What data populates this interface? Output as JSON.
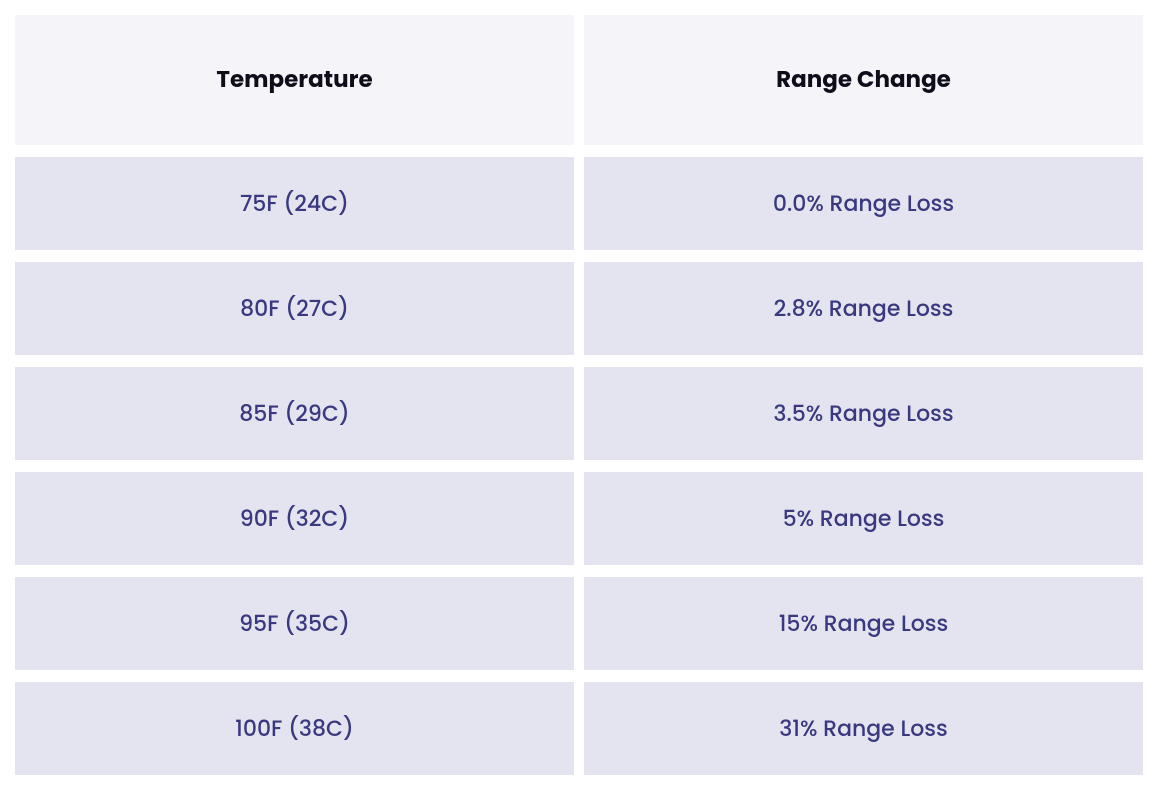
{
  "table": {
    "type": "table",
    "columns": [
      {
        "label": "Temperature",
        "alignment": "center"
      },
      {
        "label": "Range Change",
        "alignment": "center"
      }
    ],
    "rows": [
      {
        "temperature": "75F (24C)",
        "range_change": "0.0% Range Loss"
      },
      {
        "temperature": "80F (27C)",
        "range_change": "2.8% Range Loss"
      },
      {
        "temperature": "85F (29C)",
        "range_change": "3.5% Range Loss"
      },
      {
        "temperature": "90F (32C)",
        "range_change": "5% Range Loss"
      },
      {
        "temperature": "95F (35C)",
        "range_change": "15% Range Loss"
      },
      {
        "temperature": "100F (38C)",
        "range_change": "31% Range Loss"
      }
    ],
    "header_background_color": "#f5f4f9",
    "header_text_color": "#0e0d1a",
    "header_fontsize": 23,
    "header_font_weight": 700,
    "data_background_color": "#e3e4ef",
    "data_text_color": "#3a3980",
    "data_fontsize": 22,
    "data_font_weight": 500,
    "row_gap": 12,
    "column_gap": 10,
    "header_padding_vertical": 48,
    "data_padding_vertical": 30,
    "page_background_color": "#ffffff"
  }
}
